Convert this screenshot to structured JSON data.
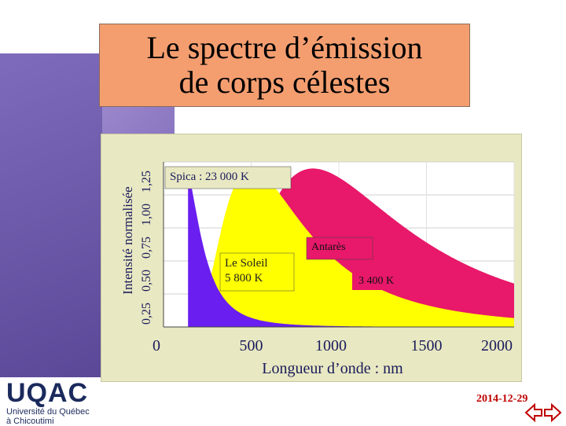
{
  "title": {
    "line1": "Le spectre d’émission",
    "line2": "de corps célestes"
  },
  "chart_data": {
    "type": "area",
    "xlabel": "Longueur d’onde : nm",
    "ylabel": "Intensité normalisée",
    "x_ticks": [
      "0",
      "500",
      "1000",
      "1500",
      "2000"
    ],
    "y_ticks": [
      "0,25",
      "0,50",
      "0,75",
      "1,00",
      "1,25"
    ],
    "xlim": [
      0,
      2000
    ],
    "ylim": [
      0,
      1.25
    ],
    "grid": true,
    "series": [
      {
        "label_lines": [
          "Antarès"
        ],
        "temp_label": "3 400 K",
        "temperature_K": 3400,
        "color": "#e8186a"
      },
      {
        "label_lines": [
          "Le Soleil",
          "5 800 K"
        ],
        "temperature_K": 5800,
        "color": "#ffff00"
      },
      {
        "label_lines": [
          "Spica : 23 000 K"
        ],
        "temperature_K": 23000,
        "color": "#6a1ef0"
      }
    ]
  },
  "footer": {
    "logo_text": "UQAC",
    "university_line1": "Université du Québec",
    "university_line2": "à Chicoutimi",
    "date": "2014-12-29"
  },
  "nav": {
    "prev_icon": "arrow-left-icon",
    "next_icon": "arrow-right-icon"
  },
  "colors": {
    "title_bg": "#f49e70",
    "chart_panel": "#e8e8c2",
    "accent_purple": "#8f7bc4",
    "date": "#c00000"
  }
}
